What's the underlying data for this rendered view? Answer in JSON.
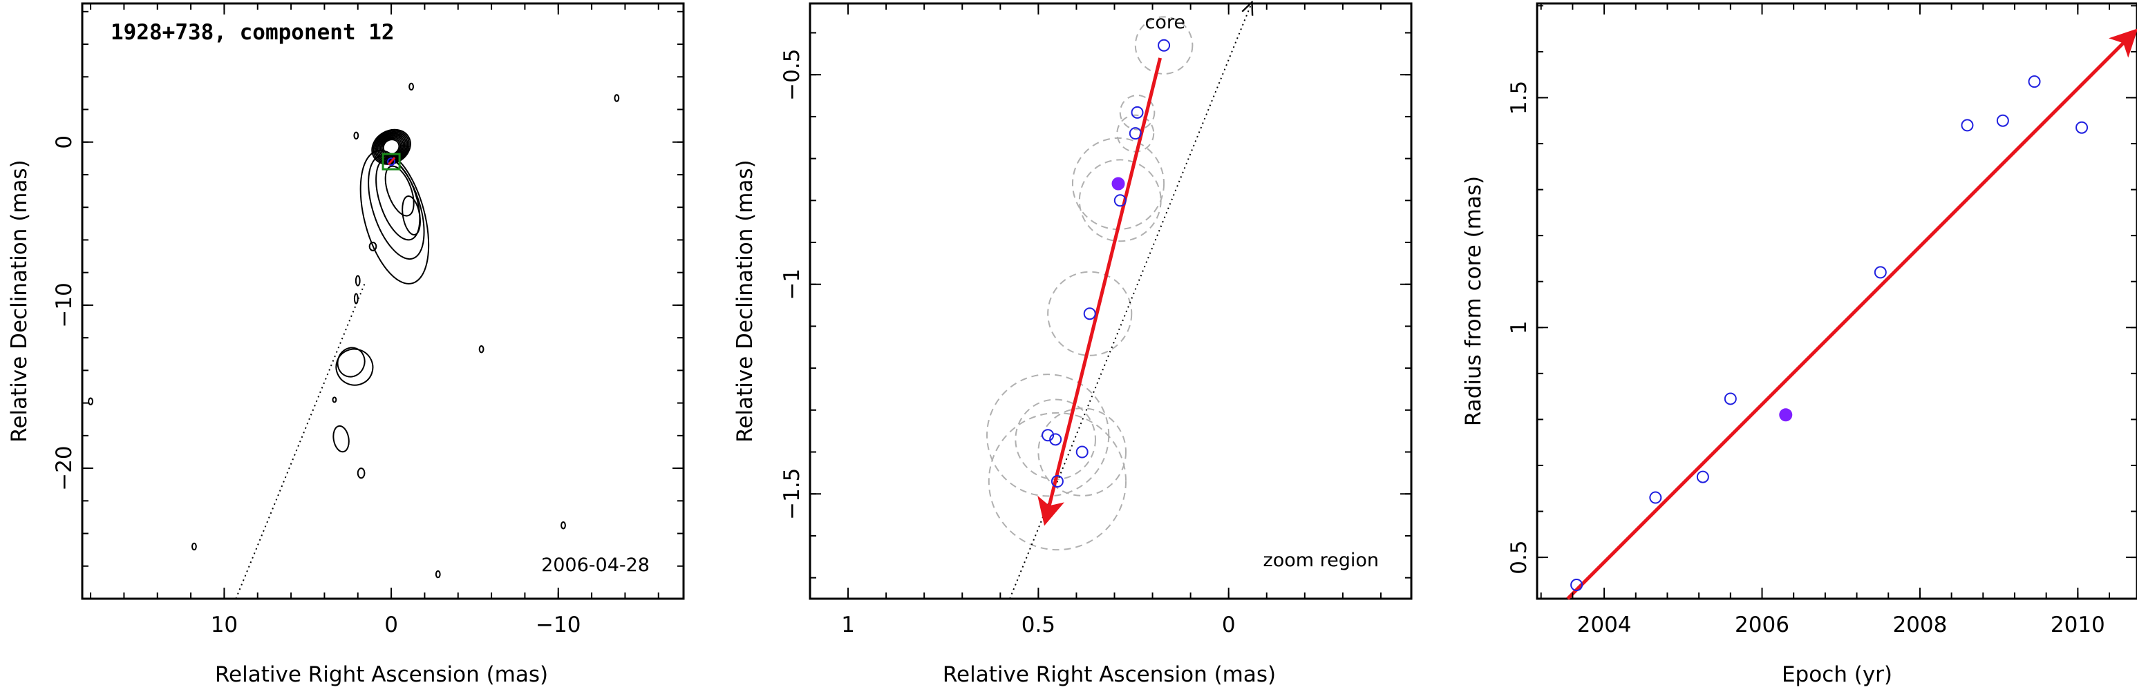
{
  "colors": {
    "axes": "#000000",
    "contour": "#000000",
    "fit_arrow": "#e8141c",
    "open_marker": "#2020e0",
    "filled_marker": "#7f1fff",
    "error_circle": "#b0b0b0",
    "jet_line": "#000000",
    "component_box": "#1a8a1a"
  },
  "chart_data": [
    {
      "type": "contour",
      "title": "1928+738, component 12",
      "date_label": "2006-04-28",
      "xlabel": "Relative Right Ascension (mas)",
      "ylabel": "Relative Declination (mas)",
      "x_reversed": true,
      "xlim": [
        18.5,
        -17.5
      ],
      "ylim": [
        -28,
        8.5
      ],
      "xticks": [
        10,
        0,
        -10
      ],
      "xtick_labels": [
        "10",
        "0",
        "−10"
      ],
      "yticks": [
        0,
        -10,
        -20
      ],
      "ytick_labels": [
        "0",
        "−10",
        "−20"
      ],
      "jet_direction_line": {
        "from": [
          9.3,
          -28
        ],
        "to": [
          1.6,
          -8.7
        ]
      },
      "component_marker": {
        "x": 0,
        "y": -1.2
      }
    },
    {
      "type": "scatter",
      "xlabel": "Relative Right Ascension (mas)",
      "ylabel": "Relative Declination (mas)",
      "x_reversed": true,
      "xlim": [
        1.1,
        -0.48
      ],
      "ylim": [
        -1.75,
        -0.33
      ],
      "xticks": [
        1,
        0.5,
        0
      ],
      "xtick_labels": [
        "1",
        "0.5",
        "0"
      ],
      "yticks": [
        -0.5,
        -1,
        -1.5
      ],
      "ytick_labels": [
        "−0.5",
        "−1",
        "−1.5"
      ],
      "core_label": "core",
      "region_label": "zoom region",
      "positions_open": [
        {
          "x": 0.17,
          "y": -0.43,
          "r": 0.075
        },
        {
          "x": 0.24,
          "y": -0.59,
          "r": 0.045
        },
        {
          "x": 0.245,
          "y": -0.64,
          "r": 0.048
        },
        {
          "x": 0.285,
          "y": -0.8,
          "r": 0.107
        },
        {
          "x": 0.365,
          "y": -1.07,
          "r": 0.11
        },
        {
          "x": 0.475,
          "y": -1.36,
          "r": 0.16
        },
        {
          "x": 0.455,
          "y": -1.37,
          "r": 0.105
        },
        {
          "x": 0.385,
          "y": -1.4,
          "r": 0.115
        },
        {
          "x": 0.45,
          "y": -1.47,
          "r": 0.18
        }
      ],
      "positions_filled": [
        {
          "x": 0.29,
          "y": -0.76,
          "r": 0.12
        }
      ],
      "fit_arrow": {
        "from": [
          0.18,
          -0.46
        ],
        "to": [
          0.48,
          -1.56
        ]
      },
      "jet_line": {
        "from": [
          0.575,
          -1.75
        ],
        "to": [
          -0.06,
          -0.33
        ]
      }
    },
    {
      "type": "scatter",
      "xlabel": "Epoch (yr)",
      "ylabel": "Radius from core (mas)",
      "xlim": [
        2003.15,
        2010.75
      ],
      "ylim": [
        0.41,
        1.705
      ],
      "xticks": [
        2004,
        2006,
        2008,
        2010
      ],
      "xtick_labels": [
        "2004",
        "2006",
        "2008",
        "2010"
      ],
      "yticks": [
        0.5,
        1,
        1.5
      ],
      "ytick_labels": [
        "0.5",
        "1",
        "1.5"
      ],
      "series_open": {
        "x": [
          2003.65,
          2004.65,
          2005.25,
          2005.6,
          2007.5,
          2008.6,
          2009.05,
          2009.45,
          2010.05
        ],
        "y": [
          0.44,
          0.63,
          0.675,
          0.845,
          1.12,
          1.44,
          1.45,
          1.535,
          1.435
        ]
      },
      "series_filled": {
        "x": [
          2006.3
        ],
        "y": [
          0.81
        ]
      },
      "fit_arrow": {
        "from": [
          2003.45,
          0.395
        ],
        "to": [
          2010.7,
          1.64
        ]
      }
    }
  ]
}
